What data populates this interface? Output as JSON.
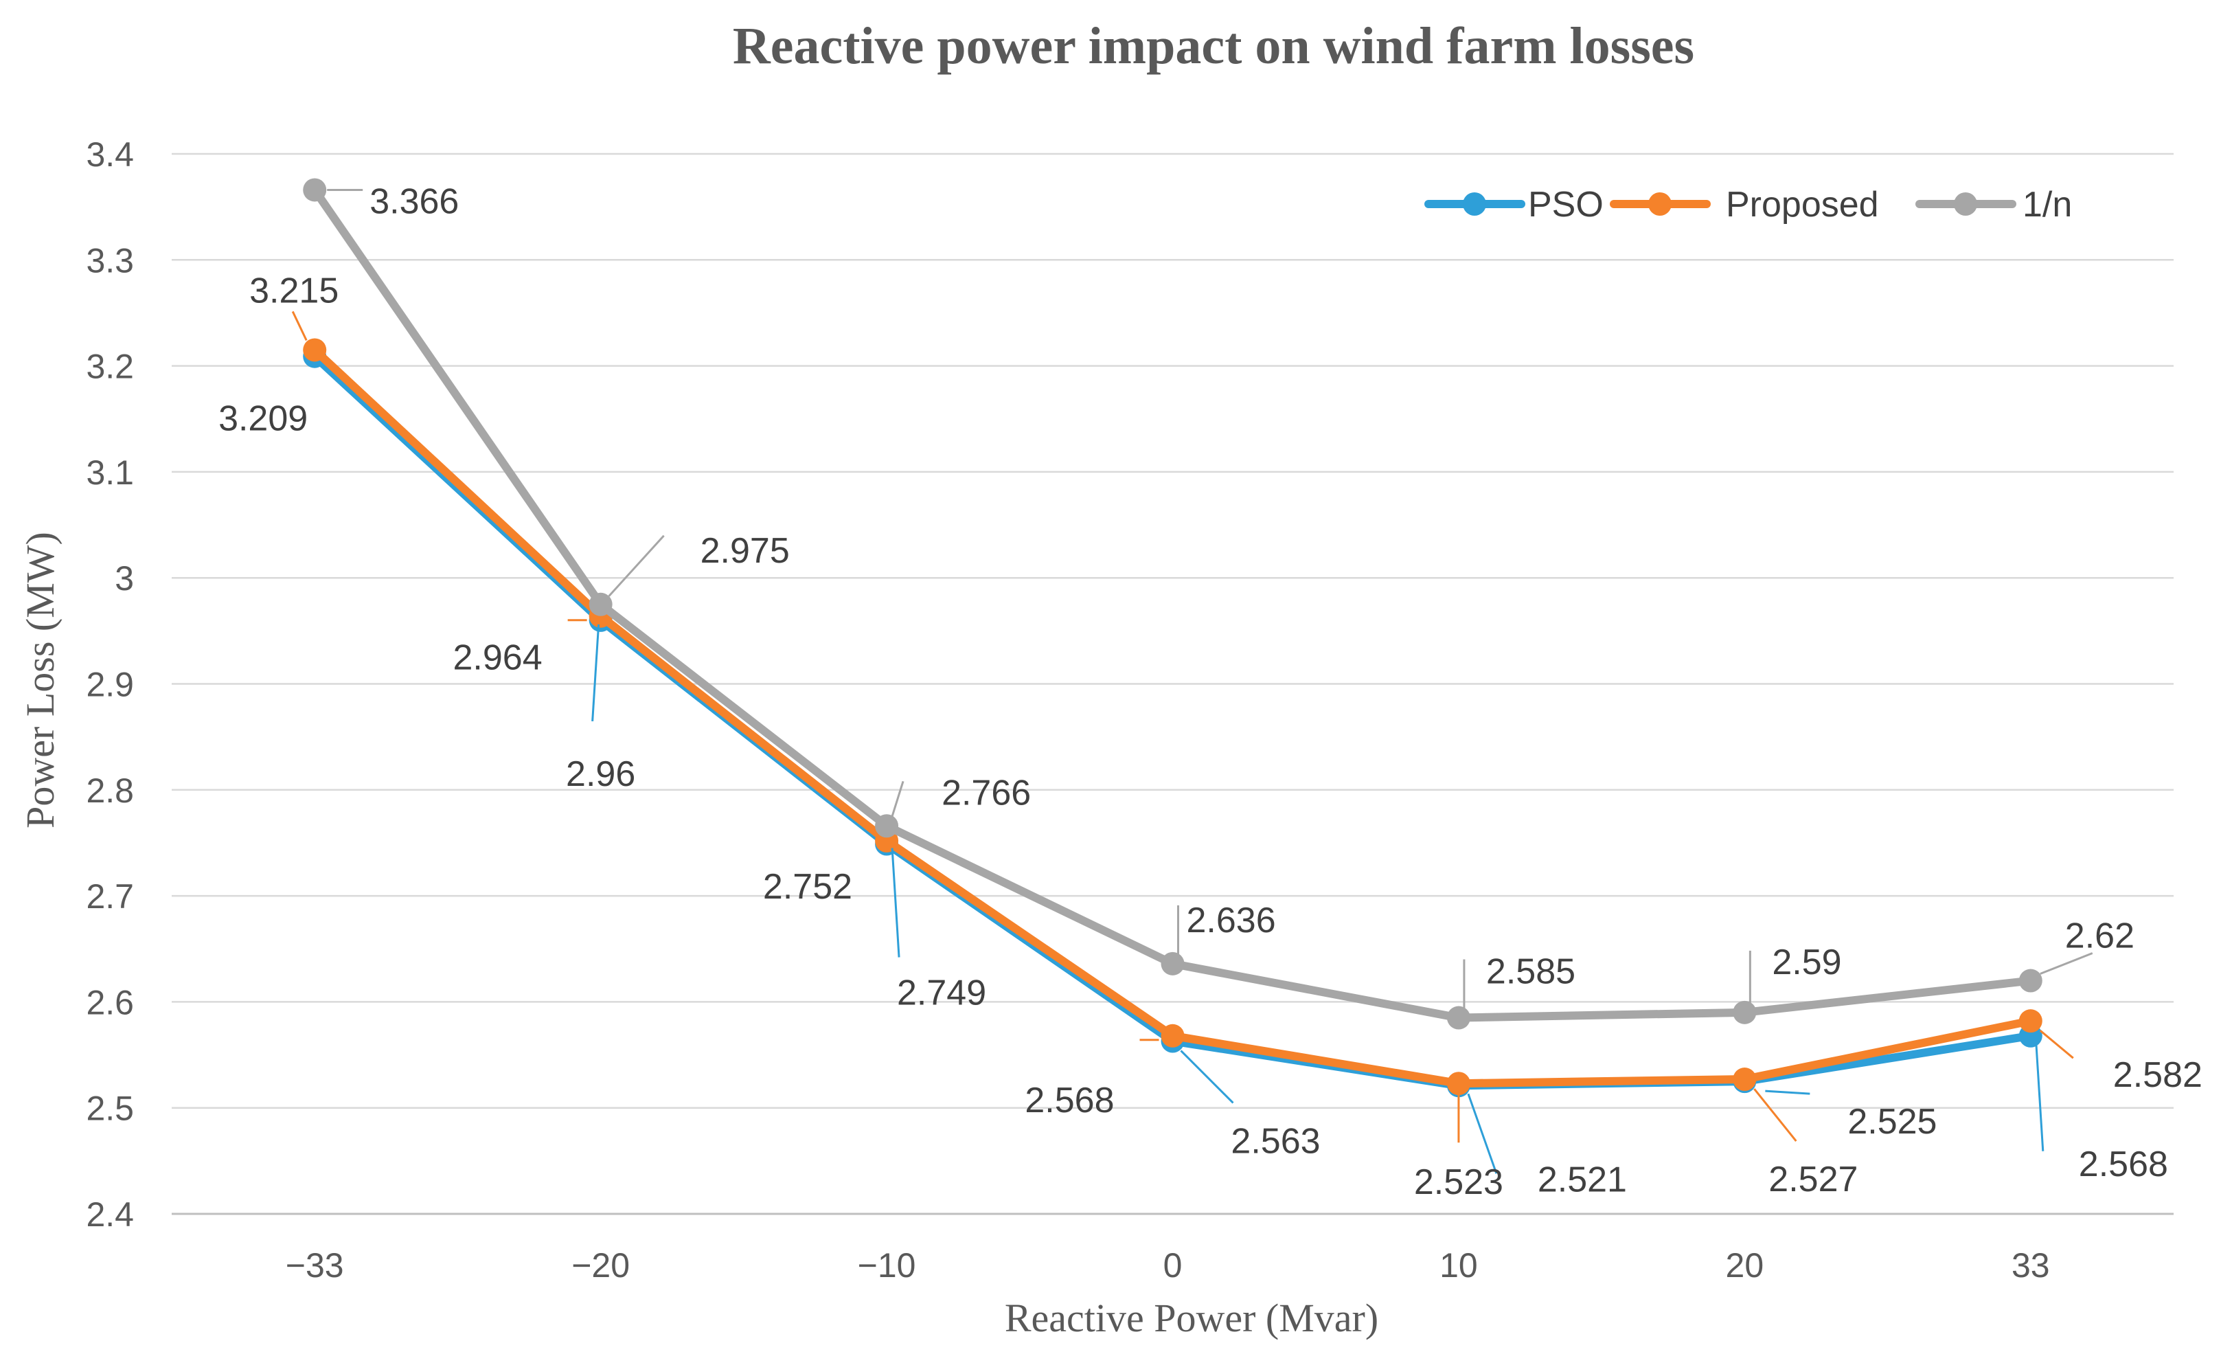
{
  "chart_data": {
    "type": "line",
    "title": "Reactive power impact on wind farm losses",
    "xlabel": "Reactive Power (Mvar)",
    "ylabel": "Power Loss (MW)",
    "categories": [
      "−33",
      "−20",
      "−10",
      "0",
      "10",
      "20",
      "33"
    ],
    "ylim": [
      2.4,
      3.4
    ],
    "yticks": [
      "2.4",
      "2.5",
      "2.6",
      "2.7",
      "2.8",
      "2.9",
      "3",
      "3.1",
      "3.2",
      "3.3",
      "3.4"
    ],
    "grid": true,
    "legend_position": "top-right",
    "series": [
      {
        "name": "PSO",
        "color": "#2e9fd8",
        "values": [
          3.209,
          2.96,
          2.749,
          2.563,
          2.521,
          2.525,
          2.568
        ],
        "labels": [
          "3.209",
          "2.96",
          "2.749",
          "2.563",
          "2.521",
          "2.525",
          "2.568"
        ]
      },
      {
        "name": "Proposed",
        "color": "#f5822a",
        "values": [
          3.215,
          2.964,
          2.752,
          2.568,
          2.523,
          2.527,
          2.582
        ],
        "labels": [
          "3.215",
          "2.964",
          "2.752",
          "2.568",
          "2.523",
          "2.527",
          "2.582"
        ]
      },
      {
        "name": "1/n",
        "color": "#a6a6a6",
        "values": [
          3.366,
          2.975,
          2.766,
          2.636,
          2.585,
          2.59,
          2.62
        ],
        "labels": [
          "3.366",
          "2.975",
          "2.766",
          "2.636",
          "2.585",
          "2.59",
          "2.62"
        ]
      }
    ]
  }
}
